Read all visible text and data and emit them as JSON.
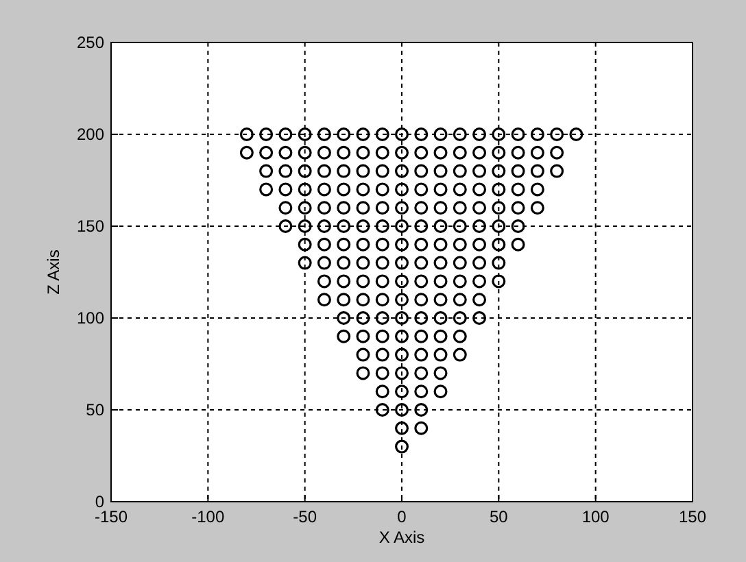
{
  "chart_data": {
    "type": "scatter",
    "xlabel": "X Axis",
    "ylabel": "Z Axis",
    "xlim": [
      -150,
      150
    ],
    "ylim": [
      0,
      250
    ],
    "xticks": [
      -150,
      -100,
      -50,
      0,
      50,
      100,
      150
    ],
    "yticks": [
      0,
      50,
      100,
      150,
      200,
      250
    ],
    "grid": true,
    "marker": "circle",
    "line_style": "dashed",
    "series": [
      {
        "color": "#000000",
        "x": [
          0,
          0,
          10,
          -10,
          0,
          10,
          -10,
          0,
          10,
          20,
          -20,
          -10,
          0,
          10,
          20,
          -20,
          -10,
          0,
          10,
          20,
          30,
          -30,
          -20,
          -10,
          0,
          10,
          20,
          30,
          -30,
          -20,
          -10,
          0,
          10,
          20,
          30,
          40,
          -40,
          -30,
          -20,
          -10,
          0,
          10,
          20,
          30,
          40,
          -40,
          -30,
          -20,
          -10,
          0,
          10,
          20,
          30,
          40,
          50,
          -50,
          -40,
          -30,
          -20,
          -10,
          0,
          10,
          20,
          30,
          40,
          50,
          -50,
          -40,
          -30,
          -20,
          -10,
          0,
          10,
          20,
          30,
          40,
          50,
          60,
          -60,
          -50,
          -40,
          -30,
          -20,
          -10,
          0,
          10,
          20,
          30,
          40,
          50,
          60,
          -60,
          -50,
          -40,
          -30,
          -20,
          -10,
          0,
          10,
          20,
          30,
          40,
          50,
          60,
          70,
          -70,
          -60,
          -50,
          -40,
          -30,
          -20,
          -10,
          0,
          10,
          20,
          30,
          40,
          50,
          60,
          70,
          -70,
          -60,
          -50,
          -40,
          -30,
          -20,
          -10,
          0,
          10,
          20,
          30,
          40,
          50,
          60,
          70,
          80,
          -80,
          -70,
          -60,
          -50,
          -40,
          -30,
          -20,
          -10,
          0,
          10,
          20,
          30,
          40,
          50,
          60,
          70,
          80,
          -80,
          -70,
          -60,
          -50,
          -40,
          -30,
          -20,
          -10,
          0,
          10,
          20,
          30,
          40,
          50,
          60,
          70,
          80,
          90
        ],
        "values": [
          30,
          40,
          40,
          50,
          50,
          50,
          60,
          60,
          60,
          60,
          70,
          70,
          70,
          70,
          70,
          80,
          80,
          80,
          80,
          80,
          80,
          90,
          90,
          90,
          90,
          90,
          90,
          90,
          100,
          100,
          100,
          100,
          100,
          100,
          100,
          100,
          110,
          110,
          110,
          110,
          110,
          110,
          110,
          110,
          110,
          120,
          120,
          120,
          120,
          120,
          120,
          120,
          120,
          120,
          120,
          130,
          130,
          130,
          130,
          130,
          130,
          130,
          130,
          130,
          130,
          130,
          140,
          140,
          140,
          140,
          140,
          140,
          140,
          140,
          140,
          140,
          140,
          140,
          150,
          150,
          150,
          150,
          150,
          150,
          150,
          150,
          150,
          150,
          150,
          150,
          150,
          160,
          160,
          160,
          160,
          160,
          160,
          160,
          160,
          160,
          160,
          160,
          160,
          160,
          160,
          170,
          170,
          170,
          170,
          170,
          170,
          170,
          170,
          170,
          170,
          170,
          170,
          170,
          170,
          170,
          180,
          180,
          180,
          180,
          180,
          180,
          180,
          180,
          180,
          180,
          180,
          180,
          180,
          180,
          180,
          180,
          190,
          190,
          190,
          190,
          190,
          190,
          190,
          190,
          190,
          190,
          190,
          190,
          190,
          190,
          190,
          190,
          190,
          200,
          200,
          200,
          200,
          200,
          200,
          200,
          200,
          200,
          200,
          200,
          200,
          200,
          200,
          200,
          200,
          200,
          200
        ]
      }
    ]
  }
}
